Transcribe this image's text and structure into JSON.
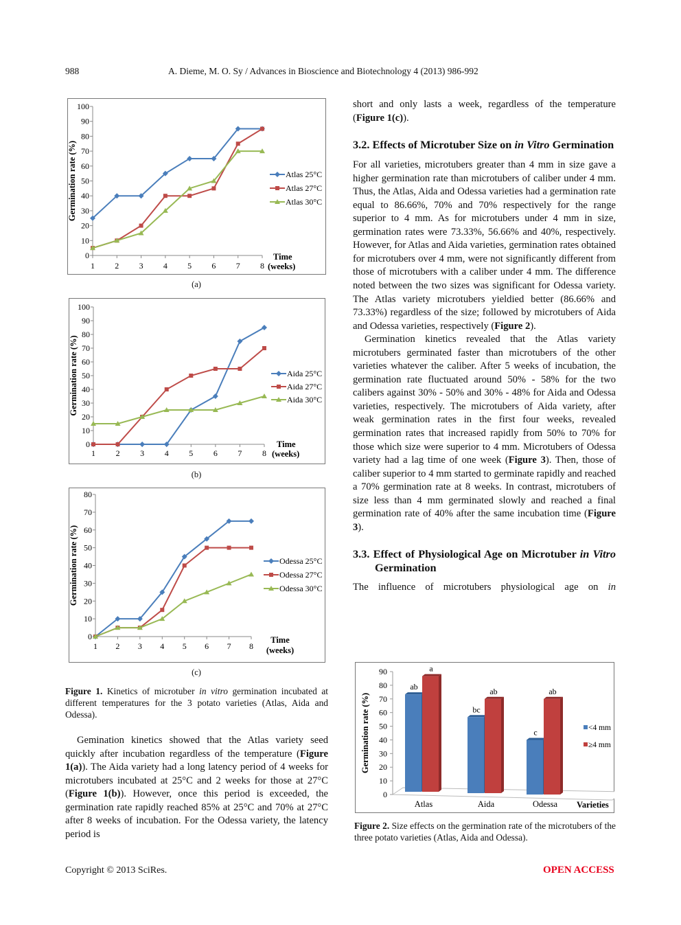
{
  "header": {
    "page_number": "988",
    "running_title": "A. Dieme, M. O. Sy / Advances in Bioscience and Biotechnology 4 (2013) 986-992"
  },
  "figure1": {
    "panel_labels": [
      "(a)",
      "(b)",
      "(c)"
    ],
    "caption": [
      [
        "Figure 1. ",
        "b"
      ],
      [
        "Kinetics of microtuber ",
        ""
      ],
      [
        "in vitro",
        "i"
      ],
      [
        " germination incubated at different temperatures for the 3 potato varieties (Atlas, Aida and Odessa).",
        ""
      ]
    ]
  },
  "figure2": {
    "caption": [
      [
        "Figure 2. ",
        "b"
      ],
      [
        "Size effects on the germination rate of the microtubers of the three potato varieties (Atlas, Aida and Odessa).",
        ""
      ]
    ]
  },
  "chart_data": [
    {
      "type": "line",
      "ylabel": "Germination rate (%)",
      "xlabel": [
        "Time",
        "(weeks)"
      ],
      "ylim": [
        0,
        100
      ],
      "yticks": [
        0,
        10,
        20,
        30,
        40,
        50,
        60,
        70,
        80,
        90,
        100
      ],
      "x": [
        1,
        2,
        3,
        4,
        5,
        6,
        7,
        8
      ],
      "legend": "right",
      "colors": [
        "#4a7ebb",
        "#be4b48",
        "#98b954"
      ],
      "markers": [
        "diamond",
        "square",
        "triangle"
      ],
      "series": [
        {
          "name": "Atlas 25°C",
          "values": [
            25,
            40,
            40,
            55,
            65,
            65,
            85,
            85
          ]
        },
        {
          "name": "Atlas 27°C",
          "values": [
            5,
            10,
            20,
            40,
            40,
            45,
            75,
            85
          ]
        },
        {
          "name": "Atlas 30°C",
          "values": [
            5,
            10,
            15,
            30,
            45,
            50,
            70,
            70
          ]
        }
      ]
    },
    {
      "type": "line",
      "ylabel": "Germination rate (%)",
      "xlabel": [
        "Time",
        "(weeks)"
      ],
      "ylim": [
        0,
        100
      ],
      "yticks": [
        0,
        10,
        20,
        30,
        40,
        50,
        60,
        70,
        80,
        90,
        100
      ],
      "x": [
        1,
        2,
        3,
        4,
        5,
        6,
        7,
        8
      ],
      "legend": "right",
      "colors": [
        "#4a7ebb",
        "#be4b48",
        "#98b954"
      ],
      "markers": [
        "diamond",
        "square",
        "triangle"
      ],
      "series": [
        {
          "name": "Aida 25°C",
          "values": [
            0,
            0,
            0,
            0,
            25,
            35,
            75,
            85
          ]
        },
        {
          "name": "Aida 27°C",
          "values": [
            0,
            0,
            20,
            40,
            50,
            55,
            55,
            70
          ]
        },
        {
          "name": "Aida 30°C",
          "values": [
            15,
            15,
            20,
            25,
            25,
            25,
            30,
            35
          ]
        }
      ]
    },
    {
      "type": "line",
      "ylabel": "Germination rate (%)",
      "xlabel": [
        "Time",
        "(weeks)"
      ],
      "ylim": [
        0,
        80
      ],
      "yticks": [
        0,
        10,
        20,
        30,
        40,
        50,
        60,
        70,
        80
      ],
      "x": [
        1,
        2,
        3,
        4,
        5,
        6,
        7,
        8
      ],
      "legend": "right",
      "colors": [
        "#4a7ebb",
        "#be4b48",
        "#98b954"
      ],
      "markers": [
        "diamond",
        "square",
        "triangle"
      ],
      "series": [
        {
          "name": "Odessa 25°C",
          "values": [
            0,
            10,
            10,
            25,
            45,
            55,
            65,
            65
          ]
        },
        {
          "name": "Odessa 27°C",
          "values": [
            0,
            5,
            5,
            15,
            40,
            50,
            50,
            50
          ]
        },
        {
          "name": "Odessa 30°C",
          "values": [
            0,
            5,
            5,
            10,
            20,
            25,
            30,
            35
          ]
        }
      ]
    },
    {
      "type": "bar",
      "ylabel": "Germination rate (%)",
      "xlabel": "Varieties",
      "ylim": [
        0,
        90
      ],
      "yticks": [
        0,
        10,
        20,
        30,
        40,
        50,
        60,
        70,
        80,
        90
      ],
      "categories": [
        "Atlas",
        "Aida",
        "Odessa"
      ],
      "legend": "right",
      "colors": [
        "#4a7ebb",
        "#c0403e"
      ],
      "series": [
        {
          "name": "<4 mm",
          "values": [
            73.33,
            56.66,
            40
          ],
          "labels": [
            "ab",
            "bc",
            "c"
          ]
        },
        {
          "name": "≥4 mm",
          "values": [
            86.66,
            70,
            70
          ],
          "labels": [
            "a",
            "ab",
            "ab"
          ]
        }
      ]
    }
  ],
  "left_text": [
    [
      [
        "Gemination kinetics showed that the Atlas variety seed quickly after incubation regardless of the temperature (",
        ""
      ],
      [
        "Figure 1(a)",
        "b"
      ],
      [
        "). The Aida variety had a long latency period of 4 weeks for microtubers incubated at 25°C and 2 weeks for those at 27°C (",
        ""
      ],
      [
        "Figure 1(b)",
        "b"
      ],
      [
        "). However, once this period is exceeded, the germination rate rapidly reached 85% at 25°C and 70% at 27°C after 8 weeks of incubation. For the Odessa variety, the latency period is",
        ""
      ]
    ]
  ],
  "right_text": {
    "intro": [
      [
        "short and only lasts a week, regardless of the temperature (",
        ""
      ],
      [
        "Figure 1(c)",
        "b"
      ],
      [
        ").",
        ""
      ]
    ],
    "heading_32": [
      [
        "3.2. Effects of Microtuber Size on ",
        ""
      ],
      [
        "in Vitro",
        "i"
      ],
      [
        " Germination",
        ""
      ]
    ],
    "para_32a": [
      [
        "For all varieties, microtubers greater than 4 mm in size gave a higher germination rate than microtubers of caliber under 4 mm. Thus, the Atlas, Aida and Odessa varieties had a germination rate equal to 86.66%, 70% and 70% respectively for the range superior to 4 mm. As for microtubers under 4 mm in size, germination rates were 73.33%, 56.66% and 40%, respectively. However, for Atlas and Aida varieties, germination rates obtained for microtubers over 4 mm, were not significantly different from those of microtubers with a caliber under 4 mm. The difference noted between the two sizes was significant for Odessa variety. The Atlas variety microtubers yieldied better (86.66% and 73.33%) regardless of the size; followed by microtubers of Aida and Odessa varieties, respectively (",
        ""
      ],
      [
        "Figure 2",
        "b"
      ],
      [
        ").",
        ""
      ]
    ],
    "para_32b": [
      [
        "Germination kinetics revealed that the Atlas variety microtubers germinated faster than microtubers of the other varieties whatever the caliber. After 5 weeks of incubation, the germination rate fluctuated around 50% - 58% for the two calibers against 30% - 50% and 30% - 48% for Aida and Odessa varieties, respectively. The microtubers of Aida variety, after weak germination rates in the first four weeks, revealed germination rates that increased rapidly from 50% to 70% for those which size were superior to 4 mm. Microtubers of Odessa variety had a lag time of one week (",
        ""
      ],
      [
        "Figure 3",
        "b"
      ],
      [
        "). Then, those of caliber superior to 4 mm started to germinate rapidly and reached a 70% germination rate at 8 weeks. In contrast, microtubers of size less than 4 mm germinated slowly and reached a final germination rate of 40% after the same incubation time (",
        ""
      ],
      [
        "Figure 3",
        "b"
      ],
      [
        ").",
        ""
      ]
    ],
    "heading_33": [
      [
        "3.3. Effect of Physiological Age on Microtuber ",
        ""
      ],
      [
        "in Vitro",
        "i"
      ],
      [
        " Germination",
        ""
      ]
    ],
    "para_33": [
      [
        "The influence of microtubers physiological age on ",
        ""
      ],
      [
        "in",
        "i"
      ]
    ]
  },
  "footer": {
    "copyright": "Copyright © 2013 SciRes.",
    "open_access": "OPEN ACCESS",
    "open_access_color": "#e8001c"
  }
}
